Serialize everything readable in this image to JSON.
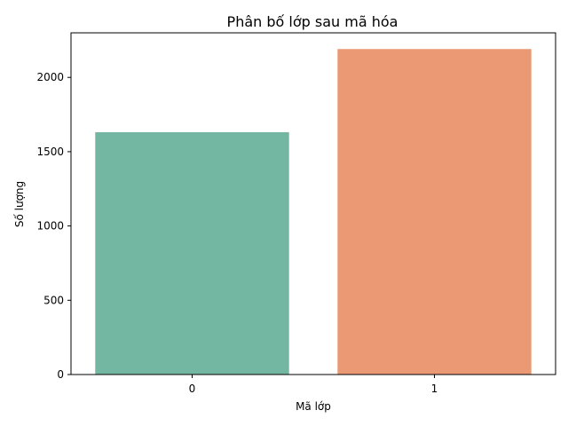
{
  "chart_data": {
    "type": "bar",
    "title": "Phân bố lớp sau mã hóa",
    "xlabel": "Mã lớp",
    "ylabel": "Số lượng",
    "categories": [
      "0",
      "1"
    ],
    "values": [
      1631,
      2191
    ],
    "colors": [
      "#73b6a1",
      "#ea9974"
    ],
    "ylim": [
      0,
      2300
    ],
    "yticks": [
      0,
      500,
      1000,
      1500,
      2000
    ],
    "grid": false,
    "legend": "none"
  }
}
